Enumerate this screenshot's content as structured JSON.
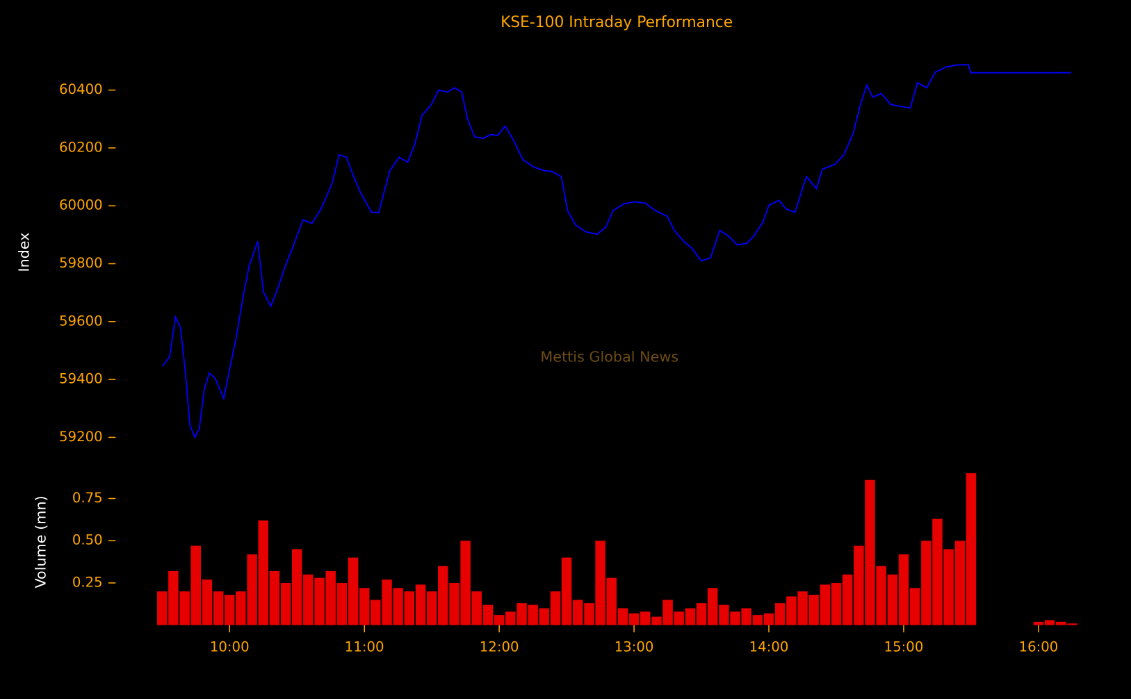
{
  "chart_data": [
    {
      "type": "line",
      "title": "KSE-100 Intraday Performance",
      "y_label": "Index",
      "annotation": "Mettis Global News",
      "color": "#0000ff",
      "x": [
        9.503,
        9.556,
        9.599,
        9.636,
        9.674,
        9.706,
        9.743,
        9.775,
        9.813,
        9.85,
        9.893,
        9.957,
        10.0,
        10.048,
        10.102,
        10.144,
        10.209,
        10.251,
        10.305,
        10.358,
        10.412,
        10.465,
        10.545,
        10.61,
        10.679,
        10.759,
        10.813,
        10.866,
        10.92,
        10.973,
        11.053,
        11.107,
        11.187,
        11.257,
        11.321,
        11.374,
        11.428,
        11.497,
        11.551,
        11.615,
        11.668,
        11.722,
        11.765,
        11.818,
        11.882,
        11.936,
        11.989,
        12.043,
        12.107,
        12.176,
        12.257,
        12.337,
        12.39,
        12.46,
        12.508,
        12.567,
        12.642,
        12.727,
        12.791,
        12.845,
        12.925,
        13.005,
        13.086,
        13.155,
        13.246,
        13.299,
        13.369,
        13.433,
        13.497,
        13.567,
        13.636,
        13.701,
        13.765,
        13.834,
        13.888,
        13.957,
        14.0,
        14.075,
        14.128,
        14.193,
        14.278,
        14.353,
        14.396,
        14.492,
        14.556,
        14.626,
        14.679,
        14.727,
        14.77,
        14.834,
        14.904,
        14.984,
        15.048,
        15.102,
        15.171,
        15.235,
        15.316,
        15.401,
        15.481,
        15.497,
        16.241
      ],
      "values": [
        59446,
        59479,
        59616,
        59578,
        59417,
        59242,
        59200,
        59230,
        59367,
        59422,
        59404,
        59335,
        59434,
        59541,
        59690,
        59790,
        59877,
        59703,
        59653,
        59715,
        59790,
        59852,
        59952,
        59939,
        59989,
        60076,
        60176,
        60168,
        60101,
        60044,
        59977,
        59977,
        60119,
        60168,
        60151,
        60213,
        60313,
        60350,
        60400,
        60393,
        60408,
        60393,
        60300,
        60238,
        60233,
        60246,
        60243,
        60276,
        60226,
        60159,
        60134,
        60121,
        60119,
        60101,
        59982,
        59934,
        59910,
        59902,
        59927,
        59984,
        60007,
        60014,
        60009,
        59984,
        59964,
        59915,
        59877,
        59852,
        59810,
        59820,
        59915,
        59895,
        59865,
        59870,
        59895,
        59944,
        60002,
        60019,
        59989,
        59977,
        60101,
        60059,
        60126,
        60144,
        60176,
        60251,
        60350,
        60417,
        60375,
        60388,
        60350,
        60343,
        60338,
        60425,
        60408,
        60462,
        60480,
        60487,
        60487,
        60460,
        60460
      ],
      "xlim": [
        9.163,
        16.577
      ],
      "ylim": [
        59130,
        60565
      ],
      "yticks": [
        59200,
        59400,
        59600,
        59800,
        60000,
        60200,
        60400
      ]
    },
    {
      "type": "bar",
      "y_label": "Volume (mn)",
      "color": "#e60000",
      "x": [
        9.5,
        9.583,
        9.667,
        9.75,
        9.833,
        9.917,
        10.0,
        10.083,
        10.167,
        10.25,
        10.333,
        10.417,
        10.5,
        10.583,
        10.667,
        10.75,
        10.833,
        10.917,
        11.0,
        11.083,
        11.167,
        11.25,
        11.333,
        11.417,
        11.5,
        11.583,
        11.667,
        11.75,
        11.833,
        11.917,
        12.0,
        12.083,
        12.167,
        12.25,
        12.333,
        12.417,
        12.5,
        12.583,
        12.667,
        12.75,
        12.833,
        12.917,
        13.0,
        13.083,
        13.167,
        13.25,
        13.333,
        13.417,
        13.5,
        13.583,
        13.667,
        13.75,
        13.833,
        13.917,
        14.0,
        14.083,
        14.167,
        14.25,
        14.333,
        14.417,
        14.5,
        14.583,
        14.667,
        14.75,
        14.833,
        14.917,
        15.0,
        15.083,
        15.167,
        15.25,
        15.333,
        15.417,
        15.5,
        16.0,
        16.083,
        16.167,
        16.25
      ],
      "values": [
        0.2,
        0.32,
        0.2,
        0.47,
        0.27,
        0.2,
        0.18,
        0.2,
        0.42,
        0.62,
        0.32,
        0.25,
        0.45,
        0.3,
        0.28,
        0.32,
        0.25,
        0.4,
        0.22,
        0.15,
        0.27,
        0.22,
        0.2,
        0.24,
        0.2,
        0.35,
        0.25,
        0.5,
        0.2,
        0.12,
        0.06,
        0.08,
        0.13,
        0.12,
        0.1,
        0.2,
        0.4,
        0.15,
        0.13,
        0.5,
        0.28,
        0.1,
        0.07,
        0.08,
        0.05,
        0.15,
        0.08,
        0.1,
        0.13,
        0.22,
        0.12,
        0.08,
        0.1,
        0.06,
        0.07,
        0.13,
        0.17,
        0.2,
        0.18,
        0.24,
        0.25,
        0.3,
        0.47,
        0.86,
        0.35,
        0.3,
        0.42,
        0.22,
        0.5,
        0.63,
        0.45,
        0.5,
        0.9,
        0.02,
        0.03,
        0.02,
        0.01
      ],
      "xlim": [
        9.163,
        16.577
      ],
      "ylim": [
        0,
        0.92
      ],
      "yticks": [
        0.25,
        {
          "value": 0.5,
          "label": "0.50"
        },
        0.75
      ],
      "xticks": [
        {
          "value": 10,
          "label": "10:00"
        },
        {
          "value": 11,
          "label": "11:00"
        },
        {
          "value": 12,
          "label": "12:00"
        },
        {
          "value": 13,
          "label": "13:00"
        },
        {
          "value": 14,
          "label": "14:00"
        },
        {
          "value": 15,
          "label": "15:00"
        },
        {
          "value": 16,
          "label": "16:00"
        }
      ]
    }
  ]
}
